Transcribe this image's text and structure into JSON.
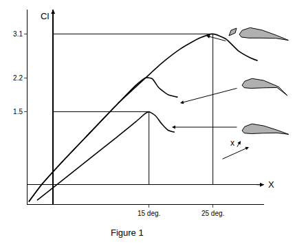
{
  "chart_data": {
    "type": "line",
    "caption": "Figure 1",
    "x_label": "X",
    "y_label": "Cl",
    "xlim": [
      -4,
      33
    ],
    "ylim": [
      -0.4,
      3.6
    ],
    "xticks": [
      {
        "value": 15,
        "label": "15 deg."
      },
      {
        "value": 25,
        "label": "25 deg."
      }
    ],
    "yticks": [
      1.5,
      2.2,
      3.1
    ],
    "grid": false,
    "legend": false,
    "series": [
      {
        "color": "#000000",
        "x": [
          -2.5,
          0.6,
          5,
          10,
          13,
          14.5,
          15,
          16,
          17,
          18,
          19
        ],
        "values": [
          -0.32,
          0,
          0.46,
          0.98,
          1.3,
          1.47,
          1.5,
          1.42,
          1.25,
          1.12,
          1.08
        ]
      },
      {
        "color": "#000000",
        "x": [
          -3.8,
          -1.8,
          2,
          6,
          10,
          13,
          14.5,
          15.5,
          16.5,
          18,
          19.5
        ],
        "values": [
          -0.35,
          0,
          0.55,
          1.1,
          1.65,
          2.05,
          2.2,
          2.18,
          2.0,
          1.85,
          1.8
        ]
      },
      {
        "color": "#000000",
        "x": [
          -3.8,
          -1.8,
          2,
          6,
          10,
          14.5,
          17,
          20,
          23,
          25,
          27,
          29,
          31,
          32
        ],
        "values": [
          -0.35,
          0,
          0.55,
          1.1,
          1.65,
          2.2,
          2.5,
          2.8,
          3.02,
          3.1,
          3.0,
          2.75,
          2.6,
          2.55
        ]
      }
    ],
    "annotations": [
      {
        "text": "x"
      }
    ]
  }
}
